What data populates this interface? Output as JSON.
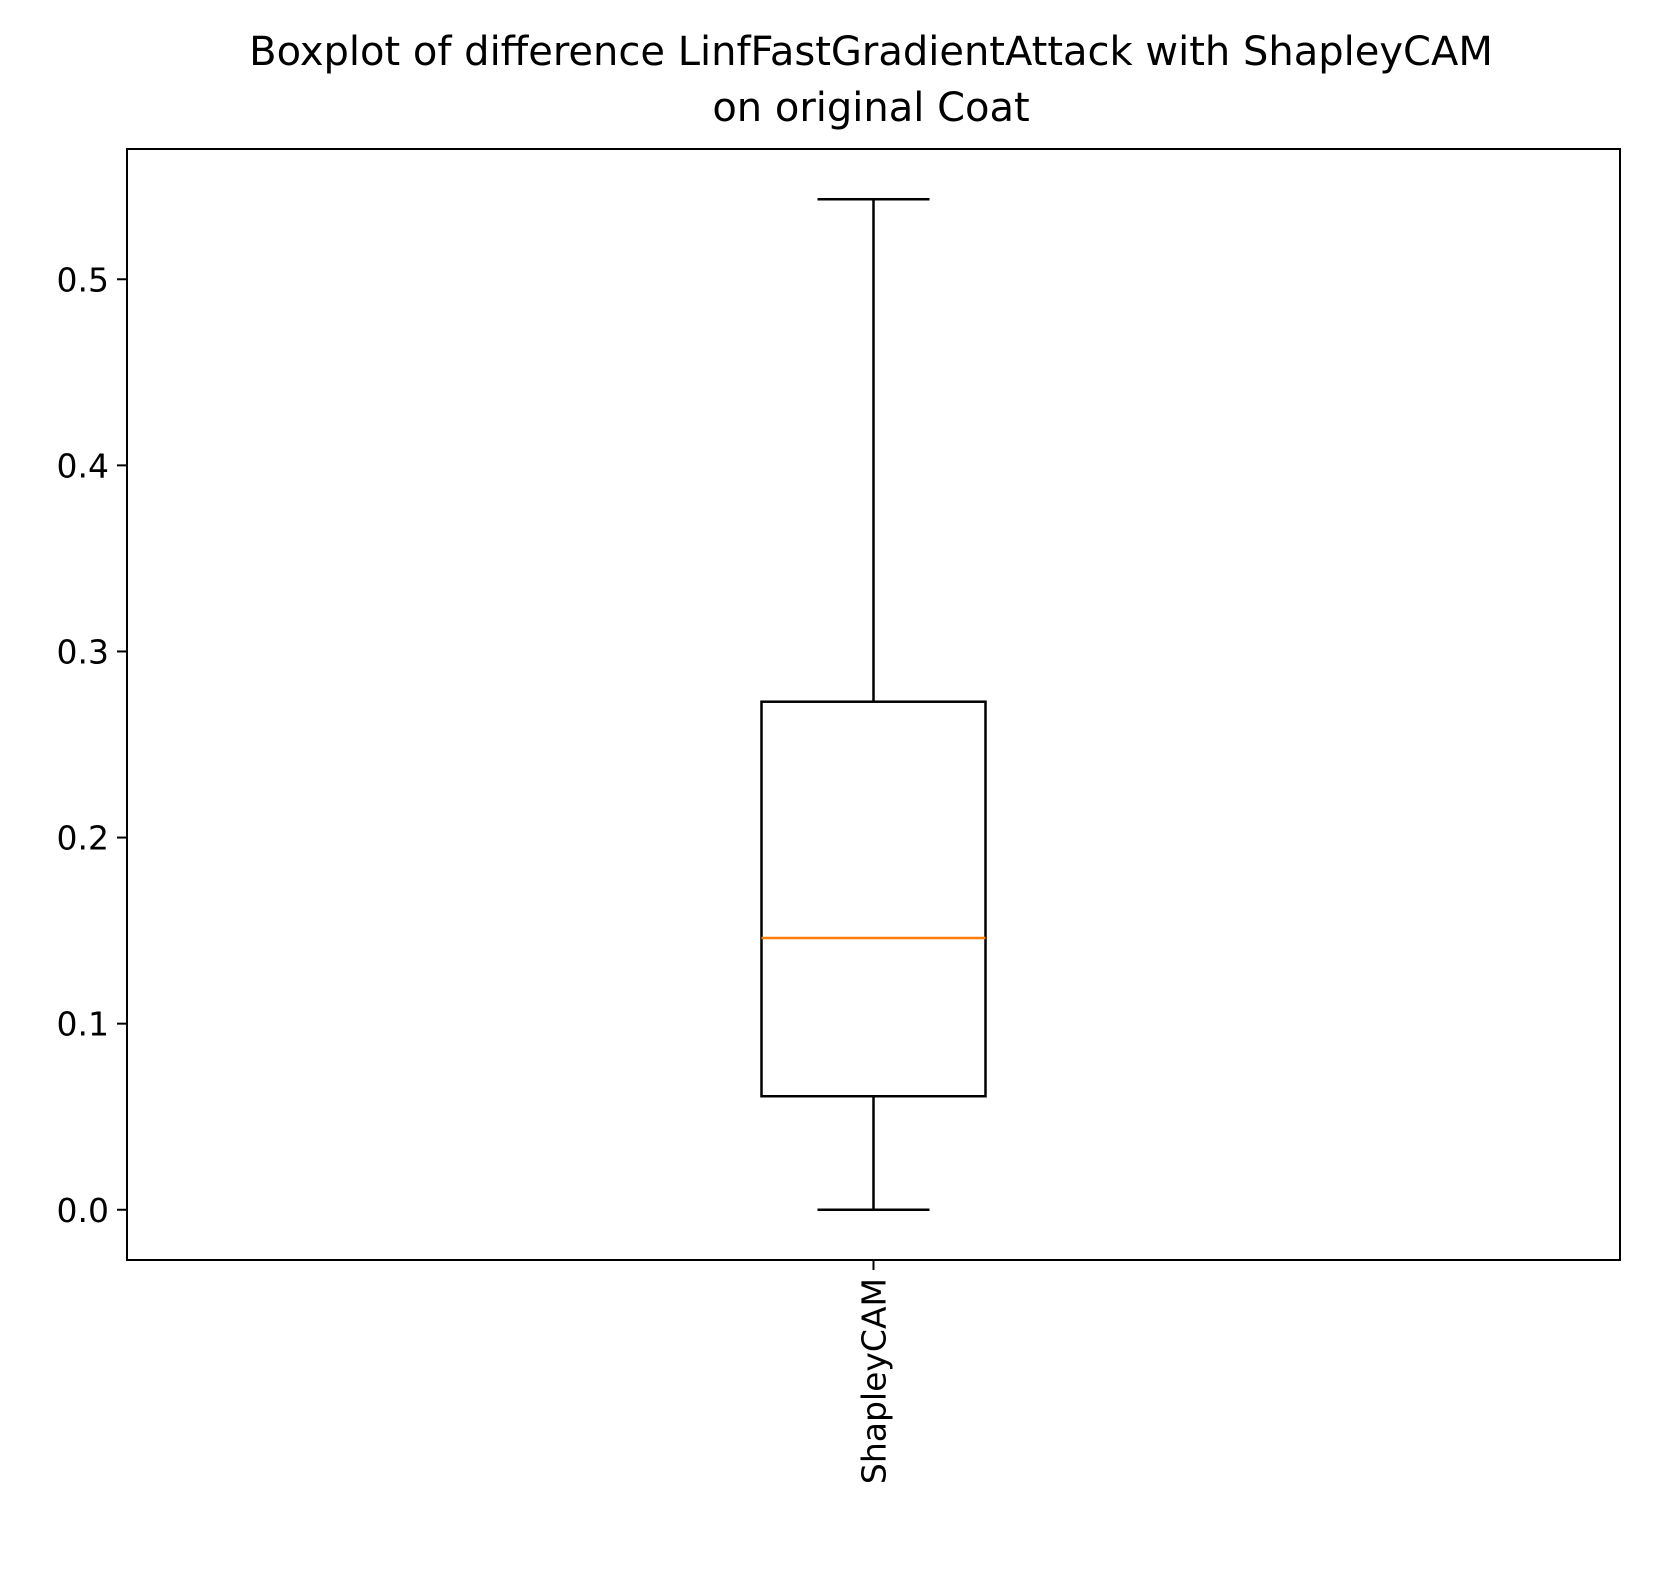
{
  "chart_data": {
    "type": "box",
    "title": "Boxplot of difference LinfFastGradientAttack with ShapleyCAM",
    "subtitle": "on original Coat",
    "categories": [
      "ShapleyCAM"
    ],
    "boxes": [
      {
        "category": "ShapleyCAM",
        "whisker_low": 0.0,
        "q1": 0.061,
        "median": 0.146,
        "q3": 0.273,
        "whisker_high": 0.543
      }
    ],
    "yticks": [
      0.0,
      0.1,
      0.2,
      0.3,
      0.4,
      0.5
    ],
    "ytick_labels": [
      "0.0",
      "0.1",
      "0.2",
      "0.3",
      "0.4",
      "0.5"
    ],
    "ylim": [
      -0.027,
      0.57
    ],
    "xlabel": "",
    "ylabel": "",
    "xtick_rotation": "vertical",
    "grid": false,
    "colors": {
      "box": "#000000",
      "median": "#ff7f0e",
      "whisker": "#000000",
      "background": "#ffffff"
    }
  }
}
